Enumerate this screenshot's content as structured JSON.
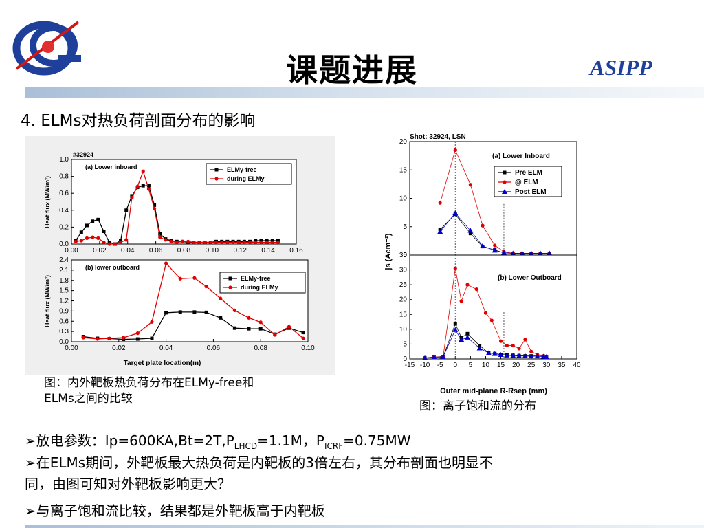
{
  "slide": {
    "title": "课题进展",
    "brand": "ASIPP",
    "section": "4. ELMs对热负荷剖面分布的影响",
    "caption_left_1": "图：内外靶板热负荷分布在ELMy-free和",
    "caption_left_2": "ELMs之间的比较",
    "caption_right": "图：离子饱和流的分布",
    "bullets": {
      "b1_prefix": "放电参数：Ip=600KA,Bt=2T,P",
      "b1_sub1": "LHCD",
      "b1_mid": "=1.1M，P",
      "b1_sub2": "ICRF",
      "b1_suffix": "=0.75MW",
      "b2_line1": "在ELMs期间，外靶板最大热负荷是内靶板的3倍左右，其分布剖面也明显不",
      "b2_line2": "同，由图可知对外靶板影响更大？",
      "b4": "与离子饱和流比较，结果都是外靶板高于内靶板"
    },
    "bullet_glyph": "➢",
    "colors": {
      "accent": "#1e3f9a",
      "series_black": "#000000",
      "series_red": "#e00000",
      "series_blue": "#0000d0"
    }
  },
  "chart_data": [
    {
      "type": "line",
      "title": "(a) Lower inboard",
      "shot_label": "#32924",
      "xlabel": "",
      "ylabel": "Heat flux (MW/m²)",
      "xlim": [
        0.0,
        0.16
      ],
      "ylim": [
        0.0,
        1.0
      ],
      "xticks": [
        "0.00",
        "0.02",
        "0.04",
        "0.06",
        "0.08",
        "0.10",
        "0.12",
        "0.14",
        "0.16"
      ],
      "yticks": [
        "0.0",
        "0.2",
        "0.4",
        "0.6",
        "0.8",
        "1.0"
      ],
      "legend_position": "top-right",
      "series": [
        {
          "name": "ELMy-free",
          "color": "#000000",
          "marker": "square",
          "x": [
            0.003,
            0.007,
            0.011,
            0.015,
            0.019,
            0.023,
            0.027,
            0.031,
            0.035,
            0.039,
            0.043,
            0.047,
            0.051,
            0.055,
            0.059,
            0.063,
            0.067,
            0.071,
            0.075,
            0.079,
            0.083,
            0.087,
            0.091,
            0.095,
            0.099,
            0.103,
            0.107,
            0.111,
            0.115,
            0.119,
            0.123,
            0.127,
            0.131,
            0.135,
            0.139,
            0.143,
            0.147
          ],
          "y": [
            0.04,
            0.14,
            0.22,
            0.27,
            0.29,
            0.15,
            0.02,
            0.0,
            0.04,
            0.4,
            0.57,
            0.67,
            0.69,
            0.69,
            0.46,
            0.12,
            0.06,
            0.04,
            0.03,
            0.03,
            0.02,
            0.02,
            0.02,
            0.02,
            0.02,
            0.03,
            0.03,
            0.03,
            0.03,
            0.03,
            0.03,
            0.03,
            0.04,
            0.04,
            0.04,
            0.04,
            0.04
          ]
        },
        {
          "name": "during ELMy",
          "color": "#e00000",
          "marker": "circle",
          "x": [
            0.003,
            0.007,
            0.011,
            0.015,
            0.019,
            0.023,
            0.027,
            0.031,
            0.035,
            0.039,
            0.043,
            0.047,
            0.051,
            0.055,
            0.059,
            0.063,
            0.067,
            0.071,
            0.075,
            0.079,
            0.083,
            0.087,
            0.091,
            0.095,
            0.099,
            0.103,
            0.107,
            0.111,
            0.115,
            0.119,
            0.123,
            0.127,
            0.131,
            0.135,
            0.139,
            0.143,
            0.147
          ],
          "y": [
            0.03,
            0.04,
            0.07,
            0.08,
            0.07,
            0.02,
            0.0,
            0.0,
            0.02,
            0.05,
            0.55,
            0.68,
            0.86,
            0.65,
            0.42,
            0.08,
            0.05,
            0.03,
            0.02,
            0.03,
            0.03,
            0.02,
            0.02,
            0.02,
            0.02,
            0.02,
            0.02,
            0.02,
            0.02,
            0.02,
            0.02,
            0.02,
            0.02,
            0.02,
            0.02,
            0.02,
            0.02
          ]
        }
      ]
    },
    {
      "type": "line",
      "title": "(b) lower outboard",
      "xlabel": "Target plate location(m)",
      "ylabel": "Heat flux (MW/m²)",
      "xlim": [
        0.0,
        0.1
      ],
      "ylim": [
        0.0,
        2.4
      ],
      "xticks": [
        "0.00",
        "0.02",
        "0.04",
        "0.06",
        "0.08",
        "0.10"
      ],
      "yticks": [
        "0.0",
        "0.3",
        "0.6",
        "0.9",
        "1.2",
        "1.5",
        "1.8",
        "2.1",
        "2.4"
      ],
      "legend_position": "top-right",
      "series": [
        {
          "name": "ELMy-free",
          "color": "#000000",
          "marker": "square",
          "x": [
            0.005,
            0.011,
            0.016,
            0.022,
            0.028,
            0.034,
            0.04,
            0.046,
            0.052,
            0.057,
            0.063,
            0.069,
            0.075,
            0.08,
            0.086,
            0.092,
            0.098
          ],
          "y": [
            0.15,
            0.1,
            0.09,
            0.07,
            0.08,
            0.1,
            0.85,
            0.87,
            0.87,
            0.86,
            0.7,
            0.4,
            0.38,
            0.38,
            0.22,
            0.4,
            0.27
          ]
        },
        {
          "name": "during ELMy",
          "color": "#e00000",
          "marker": "circle",
          "x": [
            0.005,
            0.011,
            0.016,
            0.022,
            0.028,
            0.034,
            0.04,
            0.046,
            0.052,
            0.057,
            0.063,
            0.069,
            0.075,
            0.08,
            0.086,
            0.092,
            0.098
          ],
          "y": [
            0.12,
            0.08,
            0.1,
            0.12,
            0.25,
            0.58,
            2.3,
            1.85,
            1.87,
            1.62,
            1.27,
            0.92,
            0.7,
            0.57,
            0.2,
            0.44,
            0.1
          ]
        }
      ]
    },
    {
      "type": "scatter",
      "title": "(a) Lower Inboard",
      "shot_label": "Shot: 32924, LSN",
      "xlabel": "",
      "ylabel": "js (Acm⁻²)",
      "xlim": [
        -15,
        40
      ],
      "ylim": [
        0,
        20
      ],
      "yticks": [
        "0",
        "5",
        "10",
        "15",
        "20"
      ],
      "legend_position": "top-right",
      "series": [
        {
          "name": "Pre ELM",
          "color": "#000000",
          "marker": "square",
          "x": [
            -5,
            0,
            5,
            9,
            13,
            16,
            19,
            22,
            25,
            28,
            31
          ],
          "y": [
            4.5,
            7.2,
            3.8,
            1.5,
            0.9,
            0.4,
            0.3,
            0.3,
            0.3,
            0.3,
            0.3
          ]
        },
        {
          "name": "@ ELM",
          "color": "#e00000",
          "marker": "circle",
          "x": [
            -5,
            0,
            5,
            9,
            13,
            16,
            19,
            22,
            25,
            28,
            31
          ],
          "y": [
            9.2,
            18.5,
            12.4,
            5.2,
            1.7,
            0.6,
            0.3,
            0.3,
            0.3,
            0.3,
            0.3
          ]
        },
        {
          "name": "Post ELM",
          "color": "#0000d0",
          "marker": "triangle",
          "x": [
            -5,
            0,
            5,
            9,
            13,
            16,
            19,
            22,
            25,
            28,
            31
          ],
          "y": [
            4.1,
            7.4,
            4.3,
            1.6,
            0.8,
            0.4,
            0.3,
            0.3,
            0.3,
            0.3,
            0.3
          ]
        }
      ]
    },
    {
      "type": "scatter",
      "title": "(b) Lower Outboard",
      "xlabel": "Outer mid-plane R-Rsep (mm)",
      "ylabel": "js (Acm⁻²)",
      "xlim": [
        -15,
        40
      ],
      "ylim": [
        0,
        35
      ],
      "xticks": [
        "-15",
        "-10",
        "-5",
        "0",
        "5",
        "10",
        "15",
        "20",
        "25",
        "30",
        "35",
        "40"
      ],
      "yticks": [
        "0",
        "5",
        "10",
        "15",
        "20",
        "25",
        "30",
        "35"
      ],
      "legend_position": "none",
      "series": [
        {
          "name": "Pre ELM",
          "color": "#000000",
          "marker": "square",
          "x": [
            -10,
            -7,
            -4,
            0,
            2,
            4,
            8,
            11,
            13,
            15,
            17,
            19,
            21,
            23,
            25,
            27,
            29,
            30
          ],
          "y": [
            0.3,
            0.6,
            0.7,
            11.8,
            7.2,
            8.5,
            4.5,
            2.0,
            1.8,
            1.5,
            1.3,
            1.2,
            1.1,
            1.0,
            1.0,
            1.0,
            0.9,
            0.8
          ]
        },
        {
          "name": "@ ELM",
          "color": "#e00000",
          "marker": "circle",
          "x": [
            -10,
            -7,
            -4,
            0,
            2,
            4,
            7,
            10,
            12,
            15,
            17,
            19,
            21,
            23,
            25,
            27,
            29,
            30
          ],
          "y": [
            0.3,
            0.7,
            0.7,
            30.5,
            19.5,
            25.0,
            23.5,
            15.5,
            13.0,
            6.0,
            4.5,
            4.5,
            3.5,
            6.5,
            2.5,
            1.5,
            1.0,
            0.8
          ]
        },
        {
          "name": "Post ELM",
          "color": "#0000d0",
          "marker": "triangle",
          "x": [
            -10,
            -7,
            -4,
            0,
            2,
            4,
            8,
            11,
            13,
            15,
            17,
            19,
            21,
            23,
            25,
            27,
            29,
            30
          ],
          "y": [
            0.3,
            0.6,
            0.7,
            9.8,
            6.5,
            7.2,
            3.6,
            2.0,
            1.7,
            1.4,
            1.2,
            1.1,
            1.0,
            1.0,
            0.9,
            0.9,
            0.8,
            0.7
          ]
        }
      ]
    }
  ]
}
